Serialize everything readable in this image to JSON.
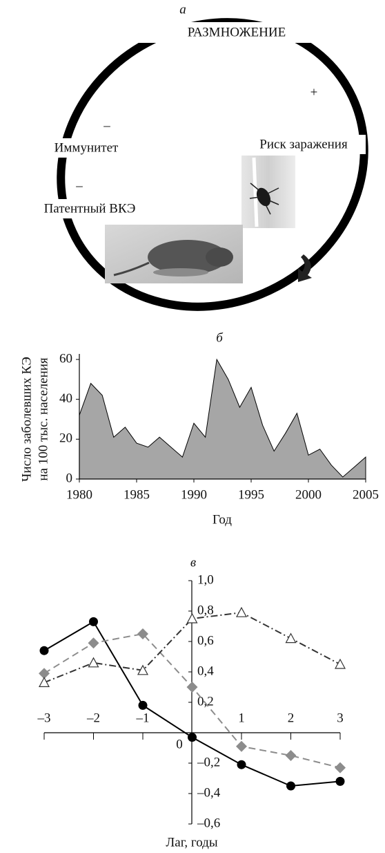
{
  "diagram": {
    "label": "а",
    "title": "РАЗМНОЖЕНИЕ",
    "plus": "+",
    "items": [
      {
        "sign": "–",
        "text": "Иммунитет"
      },
      {
        "sign": "–",
        "text": "Патентный ВКЭ"
      },
      {
        "text": "Риск заражения"
      }
    ]
  },
  "chart_data": [
    {
      "type": "area",
      "label": "б",
      "color": "#a6a6a6",
      "y_label": [
        "Число заболевших КЭ",
        "на 100 тыс. населения"
      ],
      "x_label": "Год",
      "x": [
        1980,
        1981,
        1982,
        1983,
        1984,
        1985,
        1986,
        1987,
        1988,
        1989,
        1990,
        1991,
        1992,
        1993,
        1994,
        1995,
        1996,
        1997,
        1998,
        1999,
        2000,
        2001,
        2002,
        2003,
        2004,
        2005
      ],
      "values": [
        32,
        48,
        42,
        21,
        26,
        18,
        16,
        21,
        16,
        11,
        28,
        21,
        60,
        50,
        36,
        46,
        27,
        14,
        23,
        33,
        12,
        15,
        7,
        1,
        6,
        11
      ],
      "xlim": [
        1980,
        2005
      ],
      "xticks": [
        1980,
        1985,
        1990,
        1995,
        2000,
        2005
      ],
      "ylim": [
        0,
        60
      ],
      "yticks": [
        0,
        20,
        40,
        60
      ]
    },
    {
      "type": "line",
      "label": "в",
      "x_label": "Лаг, годы",
      "x": [
        -3,
        -2,
        -1,
        0,
        1,
        2,
        3
      ],
      "series": [
        {
          "color": "#000000",
          "marker": "circle",
          "line_style": "solid",
          "values": [
            0.54,
            0.73,
            0.18,
            -0.03,
            -0.21,
            -0.35,
            -0.32
          ]
        },
        {
          "color": "#8c8c8c",
          "marker": "diamond",
          "line_style": "dashed",
          "values": [
            0.39,
            0.59,
            0.65,
            0.3,
            -0.09,
            -0.15,
            -0.23
          ]
        },
        {
          "color": "#333333",
          "marker": "triangle",
          "line_style": "dashdot",
          "values": [
            0.33,
            0.46,
            0.41,
            0.75,
            0.79,
            0.62,
            0.45
          ]
        }
      ],
      "xlim": [
        -3,
        3
      ],
      "xticks": [
        {
          "value": -3,
          "label": "–3"
        },
        {
          "value": -2,
          "label": "–2"
        },
        {
          "value": -1,
          "label": "–1"
        },
        1,
        2,
        3
      ],
      "ylim": [
        -0.6,
        1.0
      ],
      "yticks": [
        {
          "value": 1.0,
          "label": "1,0"
        },
        {
          "value": 0.8,
          "label": "0,8"
        },
        {
          "value": 0.6,
          "label": "0,6"
        },
        {
          "value": 0.4,
          "label": "0,4"
        },
        {
          "value": 0.2,
          "label": "0,2"
        },
        0,
        {
          "value": -0.2,
          "label": "–0,2"
        },
        {
          "value": -0.4,
          "label": "–0,4"
        },
        {
          "value": -0.6,
          "label": "–0,6"
        }
      ]
    }
  ]
}
